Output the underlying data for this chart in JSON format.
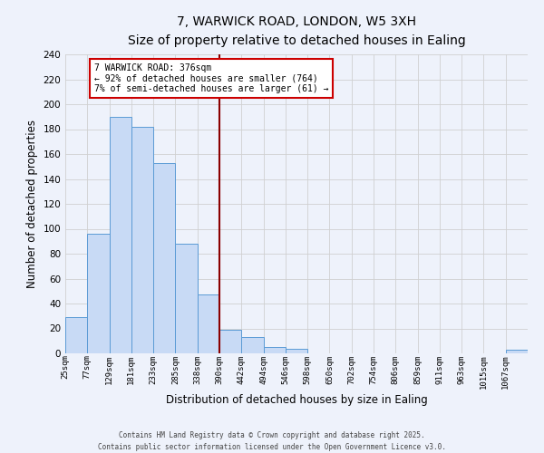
{
  "title": "7, WARWICK ROAD, LONDON, W5 3XH",
  "subtitle": "Size of property relative to detached houses in Ealing",
  "xlabel": "Distribution of detached houses by size in Ealing",
  "ylabel": "Number of detached properties",
  "bar_labels": [
    "25sqm",
    "77sqm",
    "129sqm",
    "181sqm",
    "233sqm",
    "285sqm",
    "338sqm",
    "390sqm",
    "442sqm",
    "494sqm",
    "546sqm",
    "598sqm",
    "650sqm",
    "702sqm",
    "754sqm",
    "806sqm",
    "859sqm",
    "911sqm",
    "963sqm",
    "1015sqm",
    "1067sqm"
  ],
  "bar_values": [
    29,
    96,
    190,
    182,
    153,
    88,
    47,
    19,
    13,
    5,
    4,
    0,
    0,
    0,
    0,
    0,
    0,
    0,
    0,
    0,
    3
  ],
  "bar_color": "#c8daf5",
  "bar_edge_color": "#5b9bd5",
  "vline_x": 7,
  "vline_color": "#8b0000",
  "annotation_title": "7 WARWICK ROAD: 376sqm",
  "annotation_line1": "← 92% of detached houses are smaller (764)",
  "annotation_line2": "7% of semi-detached houses are larger (61) →",
  "annotation_box_color": "#ffffff",
  "annotation_box_edge": "#cc0000",
  "ylim": [
    0,
    240
  ],
  "yticks": [
    0,
    20,
    40,
    60,
    80,
    100,
    120,
    140,
    160,
    180,
    200,
    220,
    240
  ],
  "footer_line1": "Contains HM Land Registry data © Crown copyright and database right 2025.",
  "footer_line2": "Contains public sector information licensed under the Open Government Licence v3.0.",
  "bg_color": "#eef2fb",
  "grid_color": "#d0d0d0"
}
